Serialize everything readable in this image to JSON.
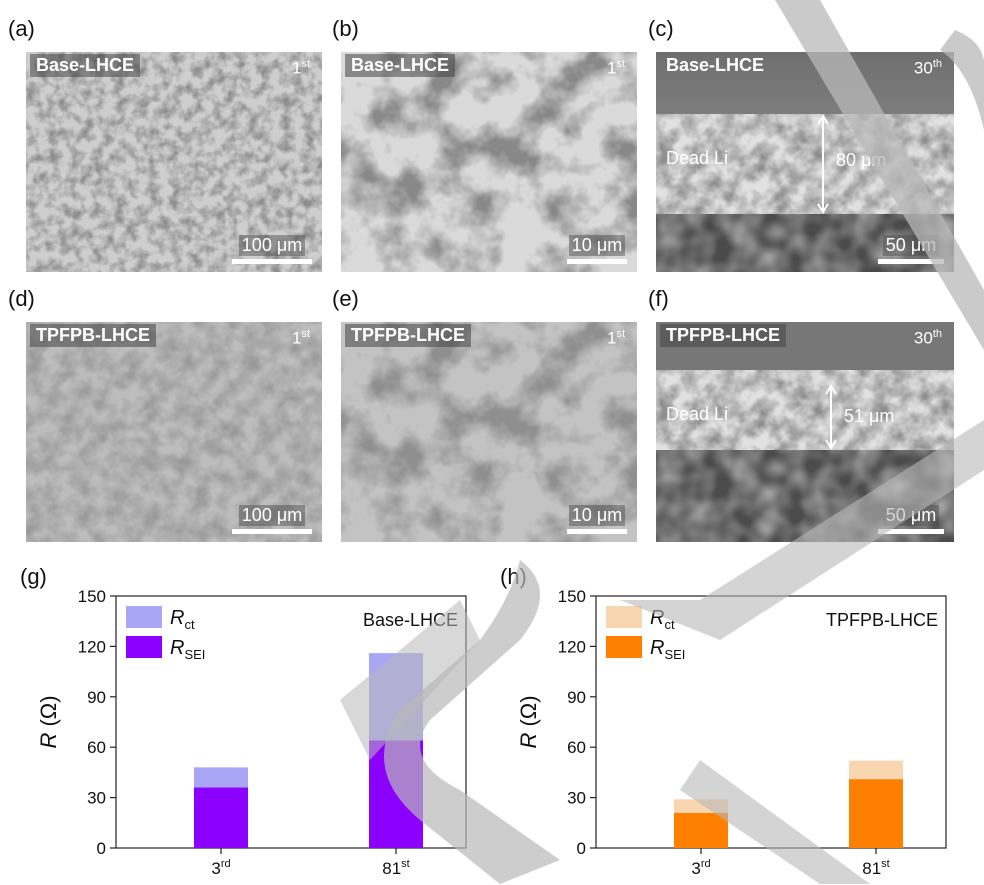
{
  "panels": {
    "a": {
      "label": "(a)",
      "electrolyte": "Base-LHCE",
      "cycle": "1",
      "cycle_sup": "st",
      "scale": "100 μm"
    },
    "b": {
      "label": "(b)",
      "electrolyte": "Base-LHCE",
      "cycle": "1",
      "cycle_sup": "st",
      "scale": "10 μm"
    },
    "c": {
      "label": "(c)",
      "electrolyte": "Base-LHCE",
      "cycle": "30",
      "cycle_sup": "th",
      "scale": "50 μm",
      "dead_li": "Dead Li",
      "thickness": "80 μm"
    },
    "d": {
      "label": "(d)",
      "electrolyte": "TPFPB-LHCE",
      "cycle": "1",
      "cycle_sup": "st",
      "scale": "100 μm"
    },
    "e": {
      "label": "(e)",
      "electrolyte": "TPFPB-LHCE",
      "cycle": "1",
      "cycle_sup": "st",
      "scale": "10 μm"
    },
    "f": {
      "label": "(f)",
      "electrolyte": "TPFPB-LHCE",
      "cycle": "30",
      "cycle_sup": "th",
      "scale": "50 μm",
      "dead_li": "Dead Li",
      "thickness": "51 μm"
    },
    "g": {
      "label": "(g)"
    },
    "h": {
      "label": "(h)"
    }
  },
  "chart_data": [
    {
      "type": "bar",
      "stacked": true,
      "title": "Base-LHCE",
      "categories": [
        "3",
        "81"
      ],
      "category_sups": [
        "rd",
        "st"
      ],
      "ylabel": "R (Ω)",
      "ylim": [
        0,
        150
      ],
      "yticks": [
        0,
        30,
        60,
        90,
        120,
        150
      ],
      "legend_position": "top-left",
      "series": [
        {
          "name": "R_SEI",
          "legend_main": "R",
          "legend_sub": "SEI",
          "values": [
            36,
            64
          ],
          "color": "#8b00ff"
        },
        {
          "name": "R_ct",
          "legend_main": "R",
          "legend_sub": "ct",
          "values": [
            12,
            52
          ],
          "color": "#a9a6f5"
        }
      ]
    },
    {
      "type": "bar",
      "stacked": true,
      "title": "TPFPB-LHCE",
      "categories": [
        "3",
        "81"
      ],
      "category_sups": [
        "rd",
        "st"
      ],
      "ylabel": "R (Ω)",
      "ylim": [
        0,
        150
      ],
      "yticks": [
        0,
        30,
        60,
        90,
        120,
        150
      ],
      "legend_position": "top-left",
      "series": [
        {
          "name": "R_SEI",
          "legend_main": "R",
          "legend_sub": "SEI",
          "values": [
            21,
            41
          ],
          "color": "#ff7f00"
        },
        {
          "name": "R_ct",
          "legend_main": "R",
          "legend_sub": "ct",
          "values": [
            8,
            11
          ],
          "color": "#f8d6b0"
        }
      ]
    }
  ]
}
